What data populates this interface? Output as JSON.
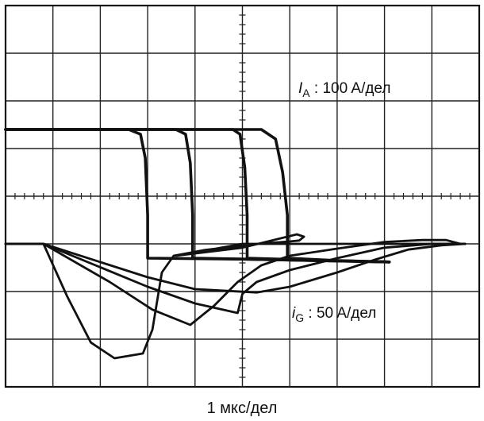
{
  "chart_data": {
    "type": "line",
    "grid": true,
    "grid_divisions": {
      "x": 10,
      "y": 8
    },
    "xlabel": "1 мкс/дел",
    "x_unit_per_division": "1 мкс",
    "series": [
      {
        "name": "I_A : 100 A/дел",
        "label_main": "I",
        "label_sub": "A",
        "label_rest": " : 100 A/дел",
        "units_per_division": "100 A",
        "curves": [
          [
            [
              0,
              5.4
            ],
            [
              2.6,
              5.4
            ],
            [
              2.85,
              5.3
            ],
            [
              2.95,
              4.8
            ],
            [
              3.0,
              3.6
            ],
            [
              3.0,
              2.7
            ],
            [
              5.0,
              2.68
            ],
            [
              8.1,
              2.62
            ]
          ],
          [
            [
              0,
              5.4
            ],
            [
              3.6,
              5.4
            ],
            [
              3.8,
              5.3
            ],
            [
              3.9,
              4.7
            ],
            [
              3.95,
              3.6
            ],
            [
              3.95,
              2.7
            ],
            [
              5.0,
              2.68
            ],
            [
              8.1,
              2.62
            ]
          ],
          [
            [
              0,
              5.4
            ],
            [
              4.8,
              5.4
            ],
            [
              4.95,
              5.3
            ],
            [
              5.05,
              4.6
            ],
            [
              5.1,
              3.6
            ],
            [
              5.1,
              2.7
            ],
            [
              6.5,
              2.66
            ],
            [
              8.1,
              2.62
            ]
          ],
          [
            [
              0,
              5.4
            ],
            [
              5.4,
              5.4
            ],
            [
              5.7,
              5.2
            ],
            [
              5.85,
              4.5
            ],
            [
              5.95,
              3.6
            ],
            [
              5.95,
              2.7
            ],
            [
              7.0,
              2.65
            ],
            [
              8.1,
              2.62
            ]
          ]
        ]
      },
      {
        "name": "i_G : 50 A/дел",
        "label_main": "i",
        "label_sub": "G",
        "label_rest": " : 50 A/дел",
        "units_per_division": "50 A",
        "curves": [
          [
            [
              0,
              3.0
            ],
            [
              0.8,
              3.0
            ],
            [
              1.3,
              1.9
            ],
            [
              1.8,
              0.93
            ],
            [
              2.3,
              0.6
            ],
            [
              2.9,
              0.7
            ],
            [
              3.1,
              1.2
            ],
            [
              3.3,
              2.4
            ],
            [
              3.55,
              2.75
            ],
            [
              4.2,
              2.87
            ],
            [
              5.3,
              3.0
            ],
            [
              6.0,
              3.05
            ],
            [
              6.2,
              3.07
            ],
            [
              6.3,
              3.15
            ],
            [
              6.15,
              3.2
            ],
            [
              5.0,
              2.92
            ],
            [
              3.6,
              2.75
            ],
            [
              5.0,
              3.0
            ],
            [
              8.0,
              3.0
            ],
            [
              9.7,
              3.0
            ]
          ],
          [
            [
              0,
              3.0
            ],
            [
              0.8,
              3.0
            ],
            [
              2.2,
              2.2
            ],
            [
              3.1,
              1.62
            ],
            [
              3.9,
              1.3
            ],
            [
              4.4,
              1.7
            ],
            [
              4.9,
              2.2
            ],
            [
              5.4,
              2.55
            ],
            [
              6.0,
              2.75
            ],
            [
              7.0,
              2.9
            ],
            [
              8.0,
              3.04
            ],
            [
              8.8,
              3.08
            ],
            [
              9.3,
              3.08
            ],
            [
              9.6,
              3.0
            ],
            [
              9.7,
              3.0
            ]
          ],
          [
            [
              0,
              3.0
            ],
            [
              0.8,
              3.0
            ],
            [
              3.0,
              2.1
            ],
            [
              4.0,
              1.75
            ],
            [
              4.9,
              1.55
            ],
            [
              5.0,
              1.95
            ],
            [
              5.3,
              2.2
            ],
            [
              6.0,
              2.45
            ],
            [
              7.0,
              2.7
            ],
            [
              8.0,
              2.92
            ],
            [
              9.0,
              3.0
            ],
            [
              9.7,
              3.0
            ]
          ],
          [
            [
              0,
              3.0
            ],
            [
              0.8,
              3.0
            ],
            [
              3.0,
              2.3
            ],
            [
              4.0,
              2.05
            ],
            [
              5.3,
              1.98
            ],
            [
              6.0,
              2.1
            ],
            [
              7.0,
              2.4
            ],
            [
              7.8,
              2.67
            ],
            [
              8.5,
              2.88
            ],
            [
              9.2,
              2.97
            ],
            [
              9.7,
              3.0
            ]
          ]
        ]
      }
    ]
  }
}
